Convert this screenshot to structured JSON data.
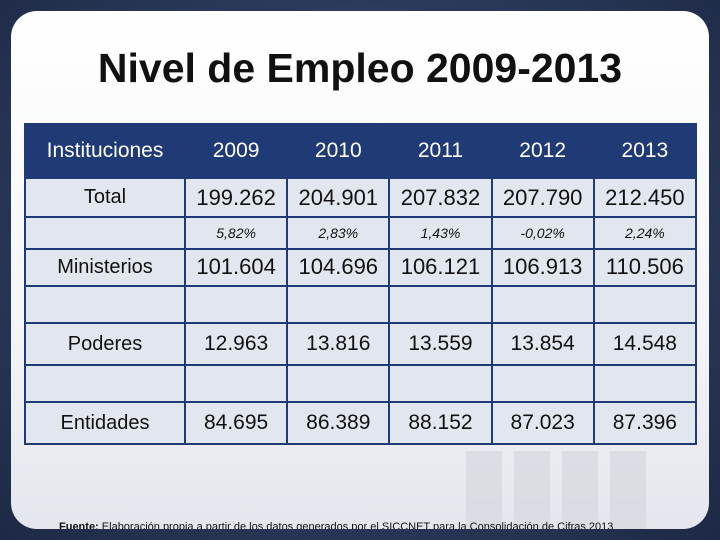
{
  "title": "Nivel de Empleo 2009-2013",
  "table": {
    "headers": [
      "Instituciones",
      "2009",
      "2010",
      "2011",
      "2012",
      "2013"
    ],
    "total": {
      "label": "Total",
      "values": [
        "199.262",
        "204.901",
        "207.832",
        "207.790",
        "212.450"
      ],
      "pct": [
        "5,82%",
        "2,83%",
        "1,43%",
        "-0,02%",
        "2,24%"
      ]
    },
    "ministerios": {
      "label": "Ministerios",
      "values": [
        "101.604",
        "104.696",
        "106.121",
        "106.913",
        "110.506"
      ]
    },
    "poderes": {
      "label": "Poderes",
      "values": [
        "12.963",
        "13.816",
        "13.559",
        "13.854",
        "14.548"
      ]
    },
    "entidades": {
      "label": "Entidades",
      "values": [
        "84.695",
        "86.389",
        "88.152",
        "87.023",
        "87.396"
      ]
    }
  },
  "footer": {
    "label": "Fuente:",
    "text": " Elaboración propia a partir de los datos generados por el SICCNET para la Consolidación de Cifras 2013"
  }
}
